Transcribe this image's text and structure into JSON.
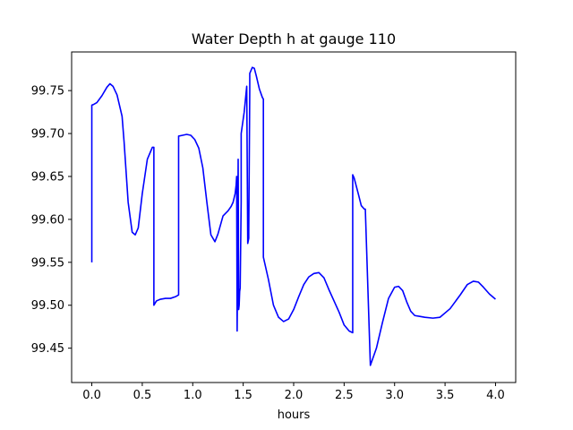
{
  "chart_data": {
    "type": "line",
    "title": "Water Depth h at gauge 110",
    "xlabel": "hours",
    "ylabel": "",
    "xlim": [
      -0.2,
      4.2
    ],
    "ylim": [
      99.41,
      99.795
    ],
    "xticks": [
      0.0,
      0.5,
      1.0,
      1.5,
      2.0,
      2.5,
      3.0,
      3.5,
      4.0
    ],
    "xtick_labels": [
      "0.0",
      "0.5",
      "1.0",
      "1.5",
      "2.0",
      "2.5",
      "3.0",
      "3.5",
      "4.0"
    ],
    "yticks": [
      99.45,
      99.5,
      99.55,
      99.6,
      99.65,
      99.7,
      99.75
    ],
    "ytick_labels": [
      "99.45",
      "99.50",
      "99.55",
      "99.60",
      "99.65",
      "99.70",
      "99.75"
    ],
    "grid": false,
    "series": [
      {
        "color": "#0000ff",
        "x": [
          0.0,
          0.0,
          0.02,
          0.05,
          0.1,
          0.15,
          0.18,
          0.21,
          0.25,
          0.3,
          0.32,
          0.36,
          0.4,
          0.43,
          0.46,
          0.5,
          0.55,
          0.6,
          0.615,
          0.615,
          0.64,
          0.68,
          0.73,
          0.78,
          0.83,
          0.86,
          0.86,
          0.9,
          0.94,
          0.98,
          1.02,
          1.06,
          1.1,
          1.14,
          1.18,
          1.22,
          1.25,
          1.3,
          1.35,
          1.38,
          1.4,
          1.42,
          1.43,
          1.435,
          1.44,
          1.445,
          1.45,
          1.455,
          1.46,
          1.465,
          1.47,
          1.48,
          1.48,
          1.51,
          1.535,
          1.545,
          1.555,
          1.555,
          1.565,
          1.565,
          1.59,
          1.61,
          1.63,
          1.66,
          1.69,
          1.7,
          1.7,
          1.75,
          1.8,
          1.85,
          1.9,
          1.95,
          2.0,
          2.05,
          2.1,
          2.15,
          2.2,
          2.25,
          2.3,
          2.35,
          2.4,
          2.45,
          2.5,
          2.55,
          2.585,
          2.585,
          2.6,
          2.64,
          2.67,
          2.7,
          2.71,
          2.71,
          2.76,
          2.82,
          2.88,
          2.94,
          3.0,
          3.04,
          3.08,
          3.12,
          3.16,
          3.2,
          3.25,
          3.3,
          3.38,
          3.45,
          3.55,
          3.65,
          3.72,
          3.78,
          3.83,
          3.88,
          3.94,
          4.0
        ],
        "y": [
          99.55,
          99.733,
          99.734,
          99.736,
          99.744,
          99.754,
          99.758,
          99.755,
          99.745,
          99.72,
          99.69,
          99.62,
          99.585,
          99.582,
          99.59,
          99.63,
          99.67,
          99.684,
          99.684,
          99.5,
          99.505,
          99.507,
          99.508,
          99.508,
          99.51,
          99.512,
          99.697,
          99.698,
          99.699,
          99.698,
          99.693,
          99.683,
          99.66,
          99.62,
          99.582,
          99.574,
          99.583,
          99.604,
          99.61,
          99.615,
          99.62,
          99.63,
          99.64,
          99.65,
          99.47,
          99.56,
          99.67,
          99.495,
          99.5,
          99.516,
          99.52,
          99.62,
          99.7,
          99.725,
          99.755,
          99.572,
          99.578,
          99.585,
          99.75,
          99.77,
          99.777,
          99.776,
          99.767,
          99.752,
          99.742,
          99.74,
          99.556,
          99.53,
          99.5,
          99.486,
          99.481,
          99.484,
          99.495,
          99.51,
          99.524,
          99.533,
          99.537,
          99.538,
          99.532,
          99.518,
          99.505,
          99.492,
          99.477,
          99.47,
          99.468,
          99.652,
          99.648,
          99.63,
          99.616,
          99.612,
          99.612,
          99.612,
          99.43,
          99.45,
          99.48,
          99.508,
          99.521,
          99.522,
          99.517,
          99.504,
          99.493,
          99.488,
          99.487,
          99.486,
          99.485,
          99.486,
          99.496,
          99.512,
          99.524,
          99.528,
          99.527,
          99.521,
          99.513,
          99.507
        ]
      }
    ]
  }
}
